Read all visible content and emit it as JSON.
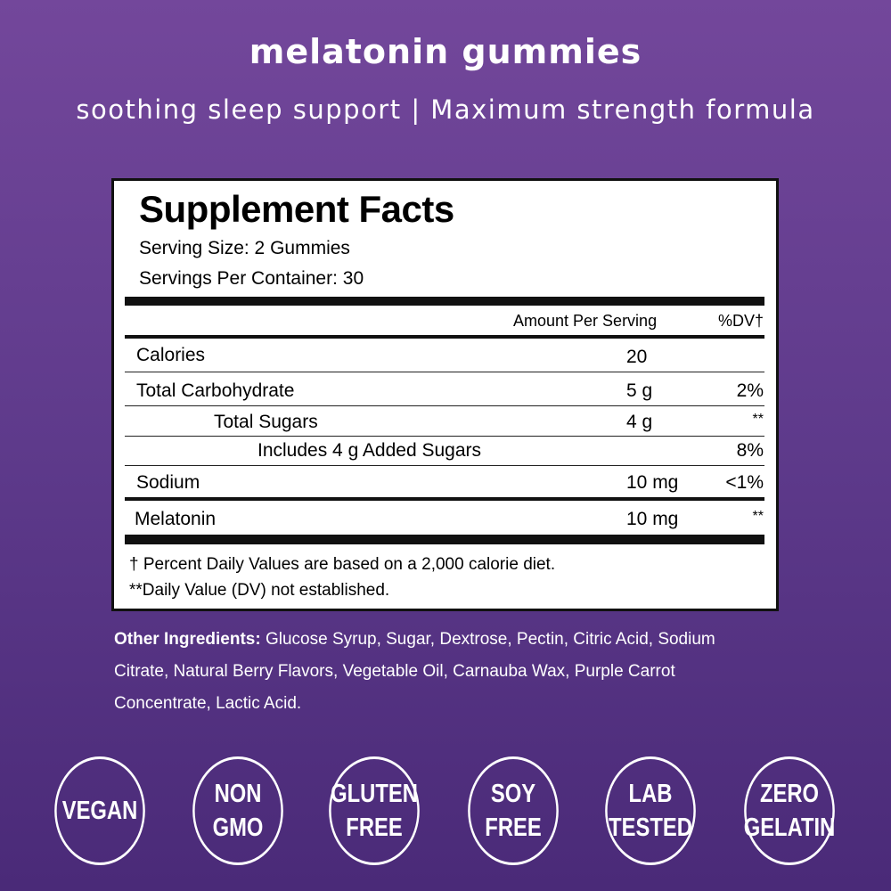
{
  "header": {
    "title": "melatonin gummies",
    "subtitle": "soothing sleep support | Maximum strength formula"
  },
  "facts": {
    "heading": "Supplement Facts",
    "serving_size": "Serving Size: 2 Gummies",
    "servings_per_container": "Servings Per Container: 30",
    "col_amount": "Amount Per Serving",
    "col_dv": "%DV†",
    "rows": [
      {
        "name": "Calories",
        "amount": "20",
        "dv": ""
      },
      {
        "name": "Total Carbohydrate",
        "amount": "5 g",
        "dv": "2%"
      },
      {
        "name": "Total Sugars",
        "amount": "4 g",
        "dv": "**"
      },
      {
        "name": "Includes 4 g Added Sugars",
        "amount": "",
        "dv": "8%"
      },
      {
        "name": "Sodium",
        "amount": "10 mg",
        "dv": "<1%"
      },
      {
        "name": "Melatonin",
        "amount": "10 mg",
        "dv": "**"
      }
    ],
    "footnote1": "† Percent Daily Values are based on a 2,000 calorie diet.",
    "footnote2": "**Daily Value (DV) not established."
  },
  "ingredients": {
    "label": "Other Ingredients:",
    "text": " Glucose Syrup, Sugar, Dextrose, Pectin, Citric Acid, Sodium Citrate, Natural Berry Flavors, Vegetable Oil, Carnauba Wax, Purple Carrot Concentrate, Lactic Acid."
  },
  "badges": [
    {
      "l1": "VEGAN",
      "l2": ""
    },
    {
      "l1": "NON",
      "l2": "GMO"
    },
    {
      "l1": "GLUTEN",
      "l2": "FREE"
    },
    {
      "l1": "SOY",
      "l2": "FREE"
    },
    {
      "l1": "LAB",
      "l2": "TESTED"
    },
    {
      "l1": "ZERO",
      "l2": "GELATIN"
    }
  ],
  "colors": {
    "background_top": "#73479b",
    "background_bottom": "#4a2a78",
    "panel": "#ffffff"
  }
}
